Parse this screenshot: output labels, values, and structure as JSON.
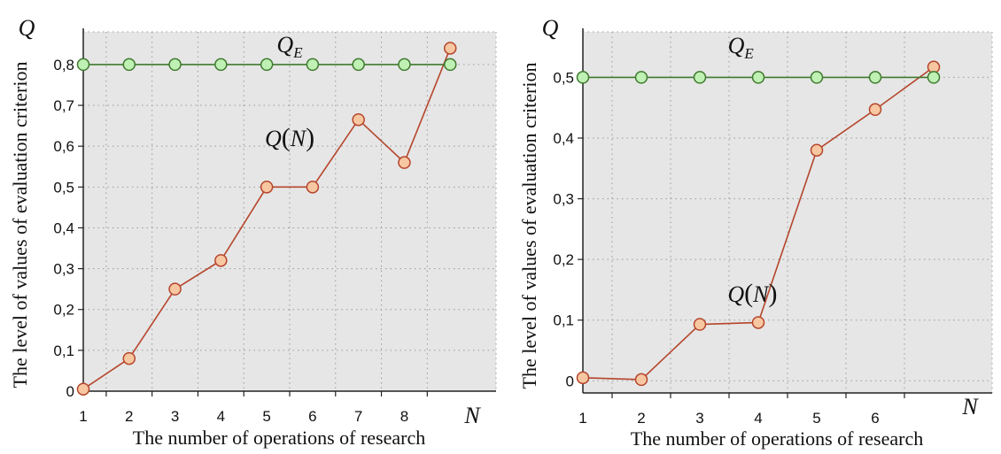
{
  "chart_data": [
    {
      "type": "line",
      "ylabel": "The level of values of evaluation criterion",
      "xlabel": "The number of operations of research",
      "y_axis_symbol": "Q",
      "x_axis_symbol": "N",
      "ylim": [
        0,
        0.88
      ],
      "xlim": [
        0.5,
        9.5
      ],
      "y_ticks": [
        "0",
        "0,1",
        "0,2",
        "0,3",
        "0,4",
        "0,5",
        "0,6",
        "0,7",
        "0,8"
      ],
      "y_tick_values": [
        0,
        0.1,
        0.2,
        0.3,
        0.4,
        0.5,
        0.6,
        0.7,
        0.8
      ],
      "x_ticks": [
        "1",
        "2",
        "3",
        "4",
        "5",
        "6",
        "7",
        "8"
      ],
      "grid": true,
      "series": [
        {
          "name": "Q(N)",
          "label_main": "Q",
          "label_paren_open": "(",
          "label_arg": "N",
          "label_paren_close": ")",
          "label_at": [
            5,
            0.6
          ],
          "color": "#b5452b",
          "marker_fill": "#f7c7a1",
          "x": [
            0.5,
            1.5,
            2.5,
            3.5,
            4.5,
            5.5,
            6.5,
            7.5,
            8.5
          ],
          "y": [
            0.005,
            0.08,
            0.25,
            0.32,
            0.5,
            0.5,
            0.665,
            0.56,
            0.84
          ]
        },
        {
          "name": "Q_E",
          "label_main": "Q",
          "label_sub": "E",
          "label_at": [
            5,
            0.83
          ],
          "color": "#3f7a2e",
          "marker_fill": "#bff0b4",
          "x": [
            0.5,
            1.5,
            2.5,
            3.5,
            4.5,
            5.5,
            6.5,
            7.5,
            8.5
          ],
          "y": [
            0.8,
            0.8,
            0.8,
            0.8,
            0.8,
            0.8,
            0.8,
            0.8,
            0.8
          ]
        }
      ]
    },
    {
      "type": "line",
      "ylabel": "The level of values of evaluation criterion",
      "xlabel": "The number of operations of research",
      "y_axis_symbol": "Q",
      "x_axis_symbol": "N",
      "ylim": [
        -0.02,
        0.575
      ],
      "xlim": [
        0.5,
        7.5
      ],
      "y_ticks": [
        "0",
        "0,1",
        "0,2",
        "0,3",
        "0,4",
        "0,5"
      ],
      "y_tick_values": [
        0,
        0.1,
        0.2,
        0.3,
        0.4,
        0.5
      ],
      "x_ticks": [
        "1",
        "2",
        "3",
        "4",
        "5",
        "6"
      ],
      "grid": true,
      "series": [
        {
          "name": "Q(N)",
          "label_main": "Q",
          "label_paren_open": "(",
          "label_arg": "N",
          "label_paren_close": ")",
          "label_at": [
            3.4,
            0.13
          ],
          "color": "#b5452b",
          "marker_fill": "#f7c7a1",
          "x": [
            0.5,
            1.5,
            2.5,
            3.5,
            4.5,
            5.5,
            6.5
          ],
          "y": [
            0.005,
            0.002,
            0.093,
            0.096,
            0.38,
            0.447,
            0.517
          ]
        },
        {
          "name": "Q_E",
          "label_main": "Q",
          "label_sub": "E",
          "label_at": [
            3.2,
            0.54
          ],
          "color": "#3f7a2e",
          "marker_fill": "#bff0b4",
          "x": [
            0.5,
            1.5,
            2.5,
            3.5,
            4.5,
            5.5,
            6.5
          ],
          "y": [
            0.5,
            0.5,
            0.5,
            0.5,
            0.5,
            0.5,
            0.5
          ]
        }
      ]
    }
  ]
}
